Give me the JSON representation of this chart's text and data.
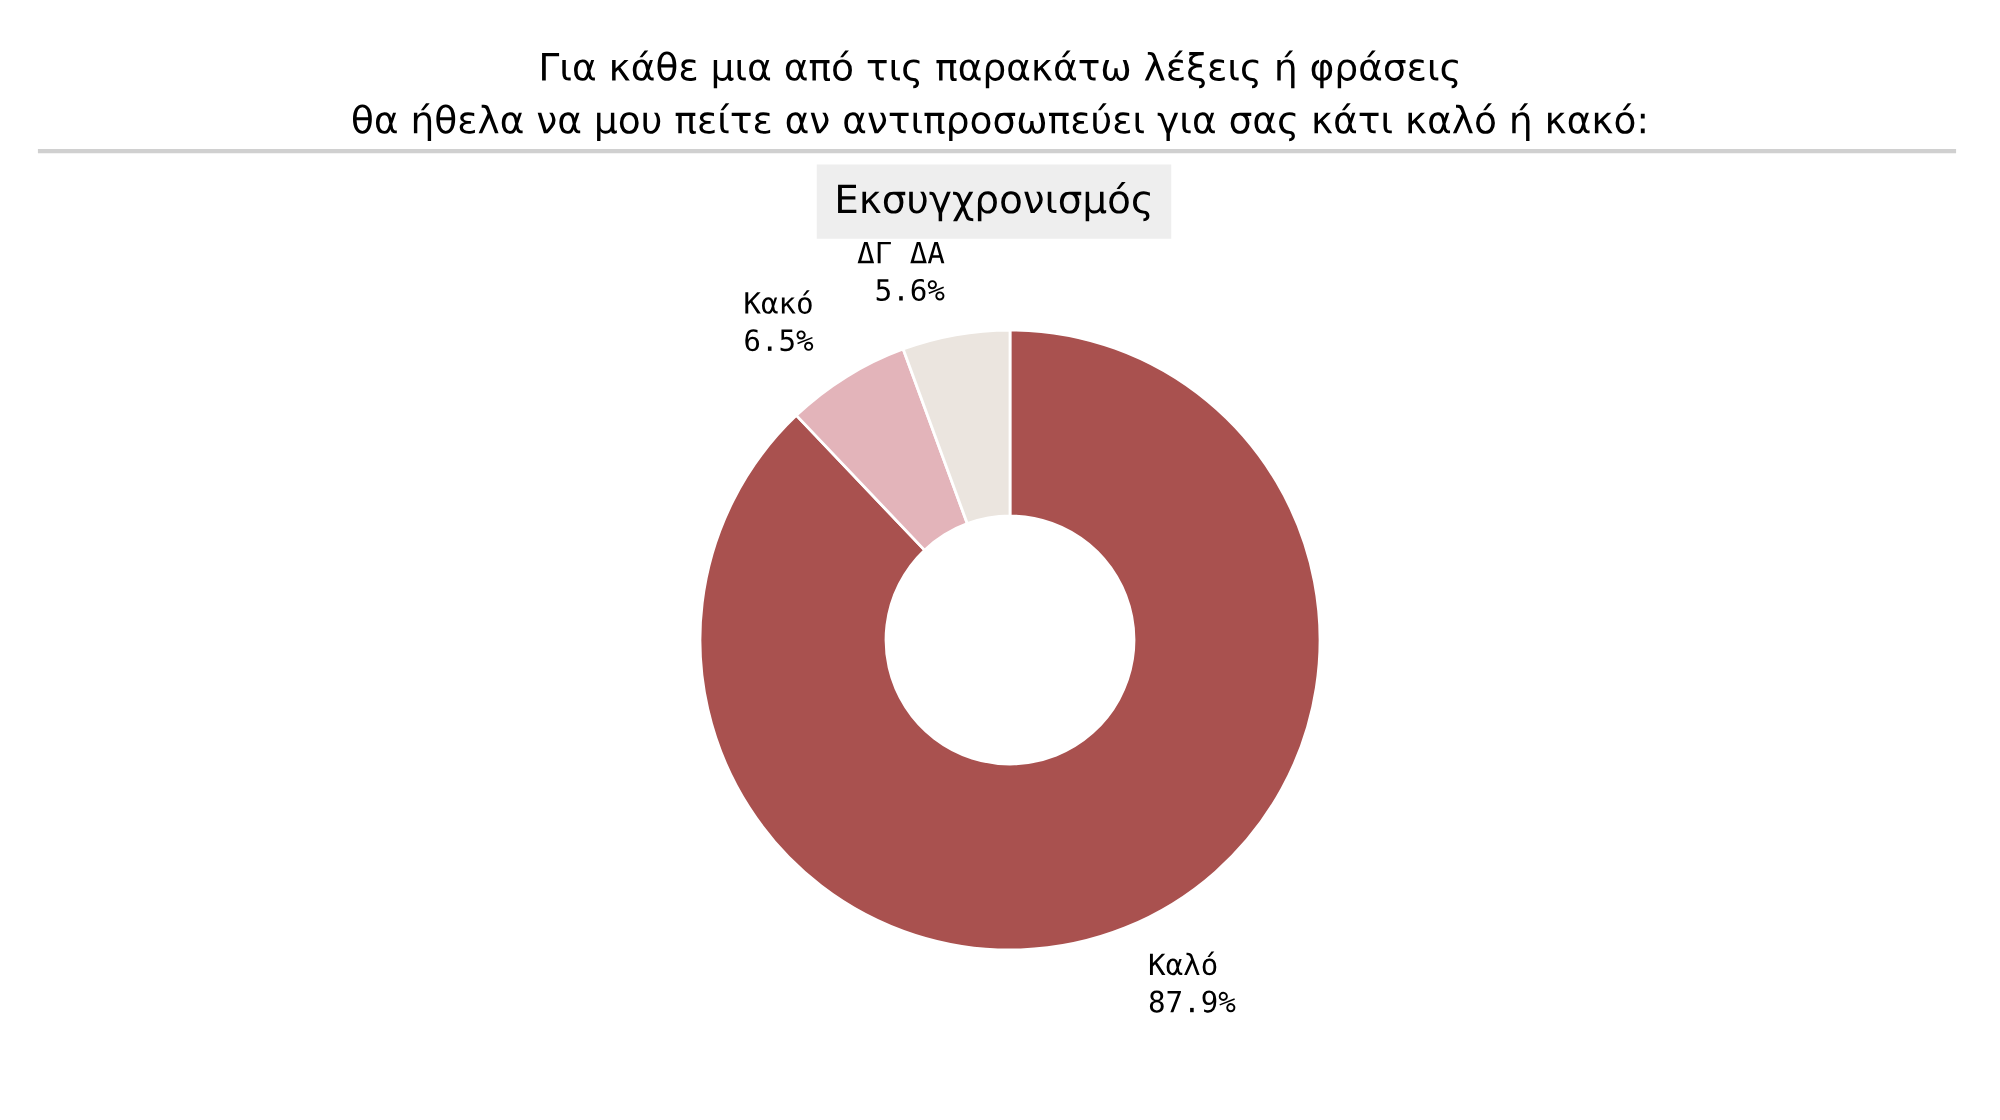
{
  "chart_data": {
    "type": "donut",
    "title": "Για κάθε μια από τις παρακάτω λέξεις ή φράσεις\nθα ήθελα να μου πείτε αν αντιπροσωπεύει για σας κάτι καλό ή κακό:",
    "subtitle": "Εκσυγχρονισμός",
    "categories": [
      "Καλό",
      "Κακό",
      "ΔΓ ΔΑ"
    ],
    "values": [
      87.9,
      6.5,
      5.6
    ],
    "value_labels": [
      "87.9%",
      "6.5%",
      "5.6%"
    ],
    "colors": [
      "#a9514f",
      "#e3b4ba",
      "#ebe5df"
    ]
  }
}
